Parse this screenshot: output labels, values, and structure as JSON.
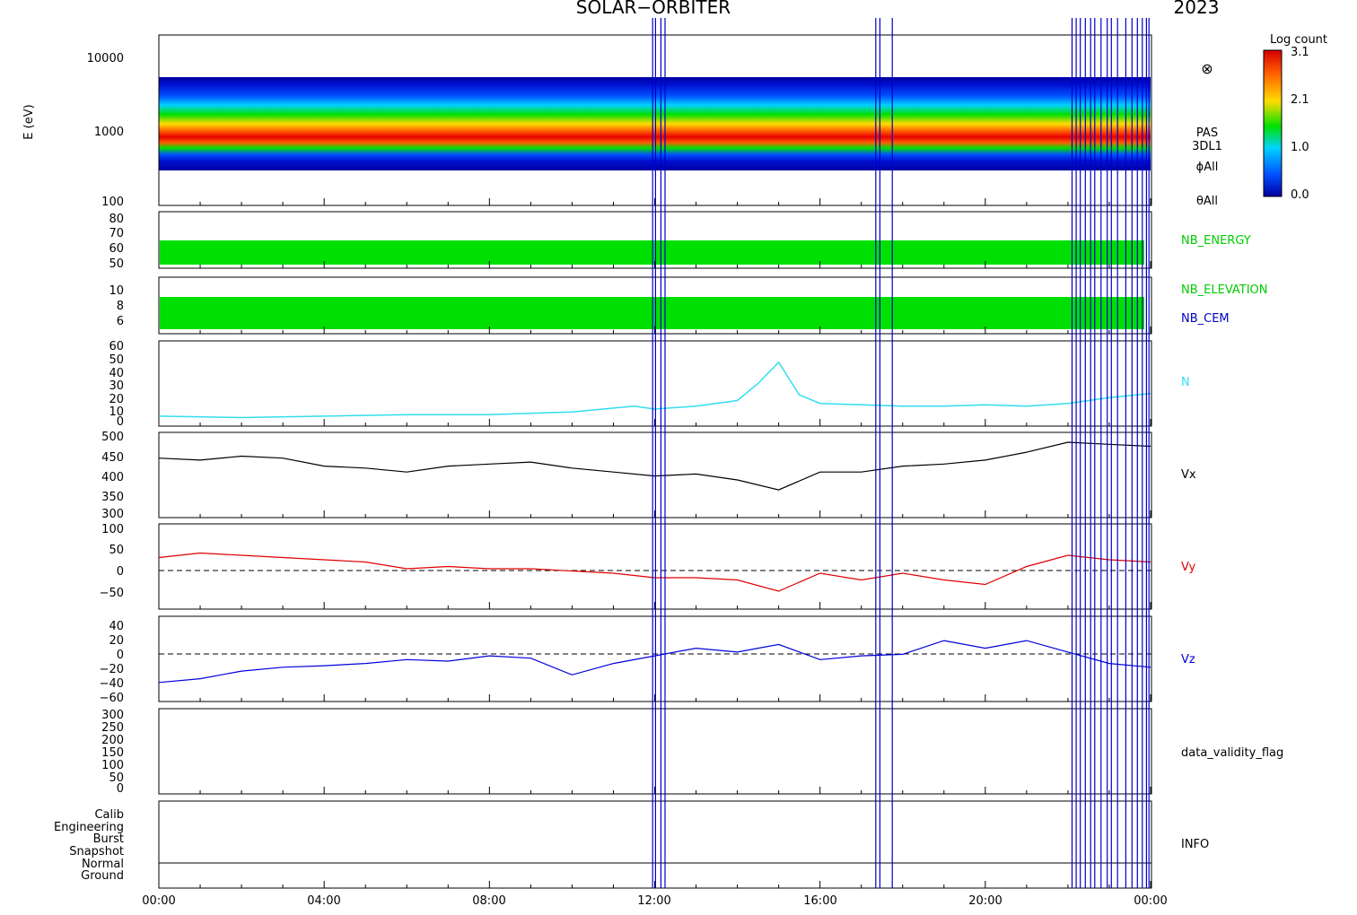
{
  "header": {
    "mission": "SOLAR−ORBITER",
    "year": "2023"
  },
  "colorbar": {
    "title": "Log count",
    "ticks": [
      "3.1",
      "2.1",
      "1.0",
      "0.0"
    ],
    "stops": [
      "#d40000",
      "#ff5a00",
      "#ffdc00",
      "#00e000",
      "#00d2ff",
      "#0050ff",
      "#0000a0"
    ]
  },
  "time_axis": {
    "labels": [
      "00:00",
      "04:00",
      "08:00",
      "12:00",
      "16:00",
      "20:00",
      "00:00"
    ]
  },
  "event_lines_hours": [
    11.95,
    12.02,
    12.15,
    12.25,
    17.35,
    17.45,
    17.75,
    22.1,
    22.2,
    22.3,
    22.42,
    22.55,
    22.65,
    22.8,
    22.95,
    23.05,
    23.2,
    23.4,
    23.55,
    23.68,
    23.8,
    23.9,
    23.96
  ],
  "colors": {
    "event_line": "#0000cc",
    "nb": "#00e000",
    "density": "#33ddee",
    "vx": "#000000",
    "vy": "#e00000",
    "vz": "#0000dd"
  },
  "chart_data": [
    {
      "type": "heatmap",
      "ylabel": "E (eV)",
      "yscale": "log",
      "ylim": [
        100,
        14000
      ],
      "yticks": [
        "10000",
        "1000",
        "100"
      ],
      "side_labels": [
        "PAS",
        "3DL1",
        "ϕAll",
        "θAll"
      ],
      "x_hours": [
        0,
        3,
        6,
        9,
        12,
        14,
        15,
        16,
        18,
        20,
        22,
        24
      ],
      "peak_energy_eV": [
        1000,
        980,
        950,
        950,
        900,
        850,
        780,
        860,
        950,
        1000,
        1050,
        1100
      ],
      "colorscale_range": [
        0.0,
        3.1
      ]
    },
    {
      "type": "bar",
      "label": "NB_ENERGY",
      "yticks": [
        "80",
        "70",
        "60",
        "50"
      ],
      "ylim": [
        45,
        82
      ],
      "band": [
        49,
        64
      ]
    },
    {
      "type": "bar",
      "labels": [
        "NB_ELEVATION",
        "NB_CEM"
      ],
      "yticks": [
        "10",
        "8",
        "6"
      ],
      "ylim": [
        5,
        10.5
      ],
      "band": [
        5.2,
        8.9
      ]
    },
    {
      "type": "line",
      "label": "N",
      "yticks": [
        "60",
        "50",
        "40",
        "30",
        "20",
        "10",
        "0"
      ],
      "ylim": [
        0,
        60
      ],
      "x": [
        0,
        2,
        4,
        6,
        8,
        10,
        11.5,
        12,
        13,
        14,
        14.5,
        15,
        15.5,
        16,
        17,
        18,
        19,
        20,
        21,
        22,
        23,
        24
      ],
      "y": [
        7,
        6,
        7,
        8,
        8,
        10,
        14,
        12,
        14,
        18,
        30,
        45,
        22,
        16,
        15,
        14,
        14,
        15,
        14,
        16,
        20,
        23
      ]
    },
    {
      "type": "line",
      "label": "Vx",
      "yticks": [
        "500",
        "450",
        "400",
        "350",
        "300"
      ],
      "ylim": [
        290,
        505
      ],
      "x": [
        0,
        1,
        2,
        3,
        4,
        5,
        6,
        7,
        8,
        9,
        10,
        11,
        12,
        13,
        14,
        15,
        16,
        17,
        18,
        19,
        20,
        21,
        22,
        23,
        24
      ],
      "y": [
        440,
        435,
        445,
        440,
        420,
        415,
        405,
        420,
        425,
        430,
        415,
        405,
        395,
        400,
        385,
        360,
        405,
        405,
        420,
        425,
        435,
        455,
        480,
        475,
        470
      ]
    },
    {
      "type": "line",
      "label": "Vy",
      "yticks": [
        "100",
        "50",
        "0",
        "−50"
      ],
      "ylim": [
        -85,
        105
      ],
      "x": [
        0,
        1,
        2,
        3,
        4,
        5,
        6,
        7,
        8,
        9,
        10,
        11,
        12,
        13,
        14,
        15,
        16,
        17,
        18,
        19,
        20,
        21,
        22,
        23,
        24
      ],
      "y": [
        30,
        40,
        35,
        30,
        25,
        20,
        5,
        10,
        5,
        5,
        0,
        -5,
        -15,
        -15,
        -20,
        -45,
        -5,
        -20,
        -5,
        -20,
        -30,
        10,
        35,
        25,
        20
      ]
    },
    {
      "type": "line",
      "label": "Vz",
      "yticks": [
        "40",
        "20",
        "0",
        "−20",
        "−40",
        "−60"
      ],
      "ylim": [
        -65,
        47
      ],
      "x": [
        0,
        1,
        2,
        3,
        4,
        5,
        6,
        7,
        8,
        9,
        10,
        11,
        12,
        13,
        14,
        15,
        16,
        17,
        18,
        19,
        20,
        21,
        22,
        23,
        24
      ],
      "y": [
        -40,
        -35,
        -25,
        -20,
        -18,
        -15,
        -10,
        -12,
        -5,
        -8,
        -30,
        -15,
        -5,
        5,
        0,
        10,
        -10,
        -5,
        -3,
        15,
        5,
        15,
        0,
        -15,
        -20
      ]
    },
    {
      "type": "line",
      "label": "data_validity_flag",
      "yticks": [
        "300",
        "250",
        "200",
        "150",
        "100",
        "50",
        "0"
      ],
      "ylim": [
        -10,
        305
      ]
    },
    {
      "type": "table",
      "label": "INFO",
      "categories": [
        "Calib",
        "Engineering",
        "Burst",
        "Snapshot",
        "Normal",
        "Ground"
      ]
    }
  ]
}
